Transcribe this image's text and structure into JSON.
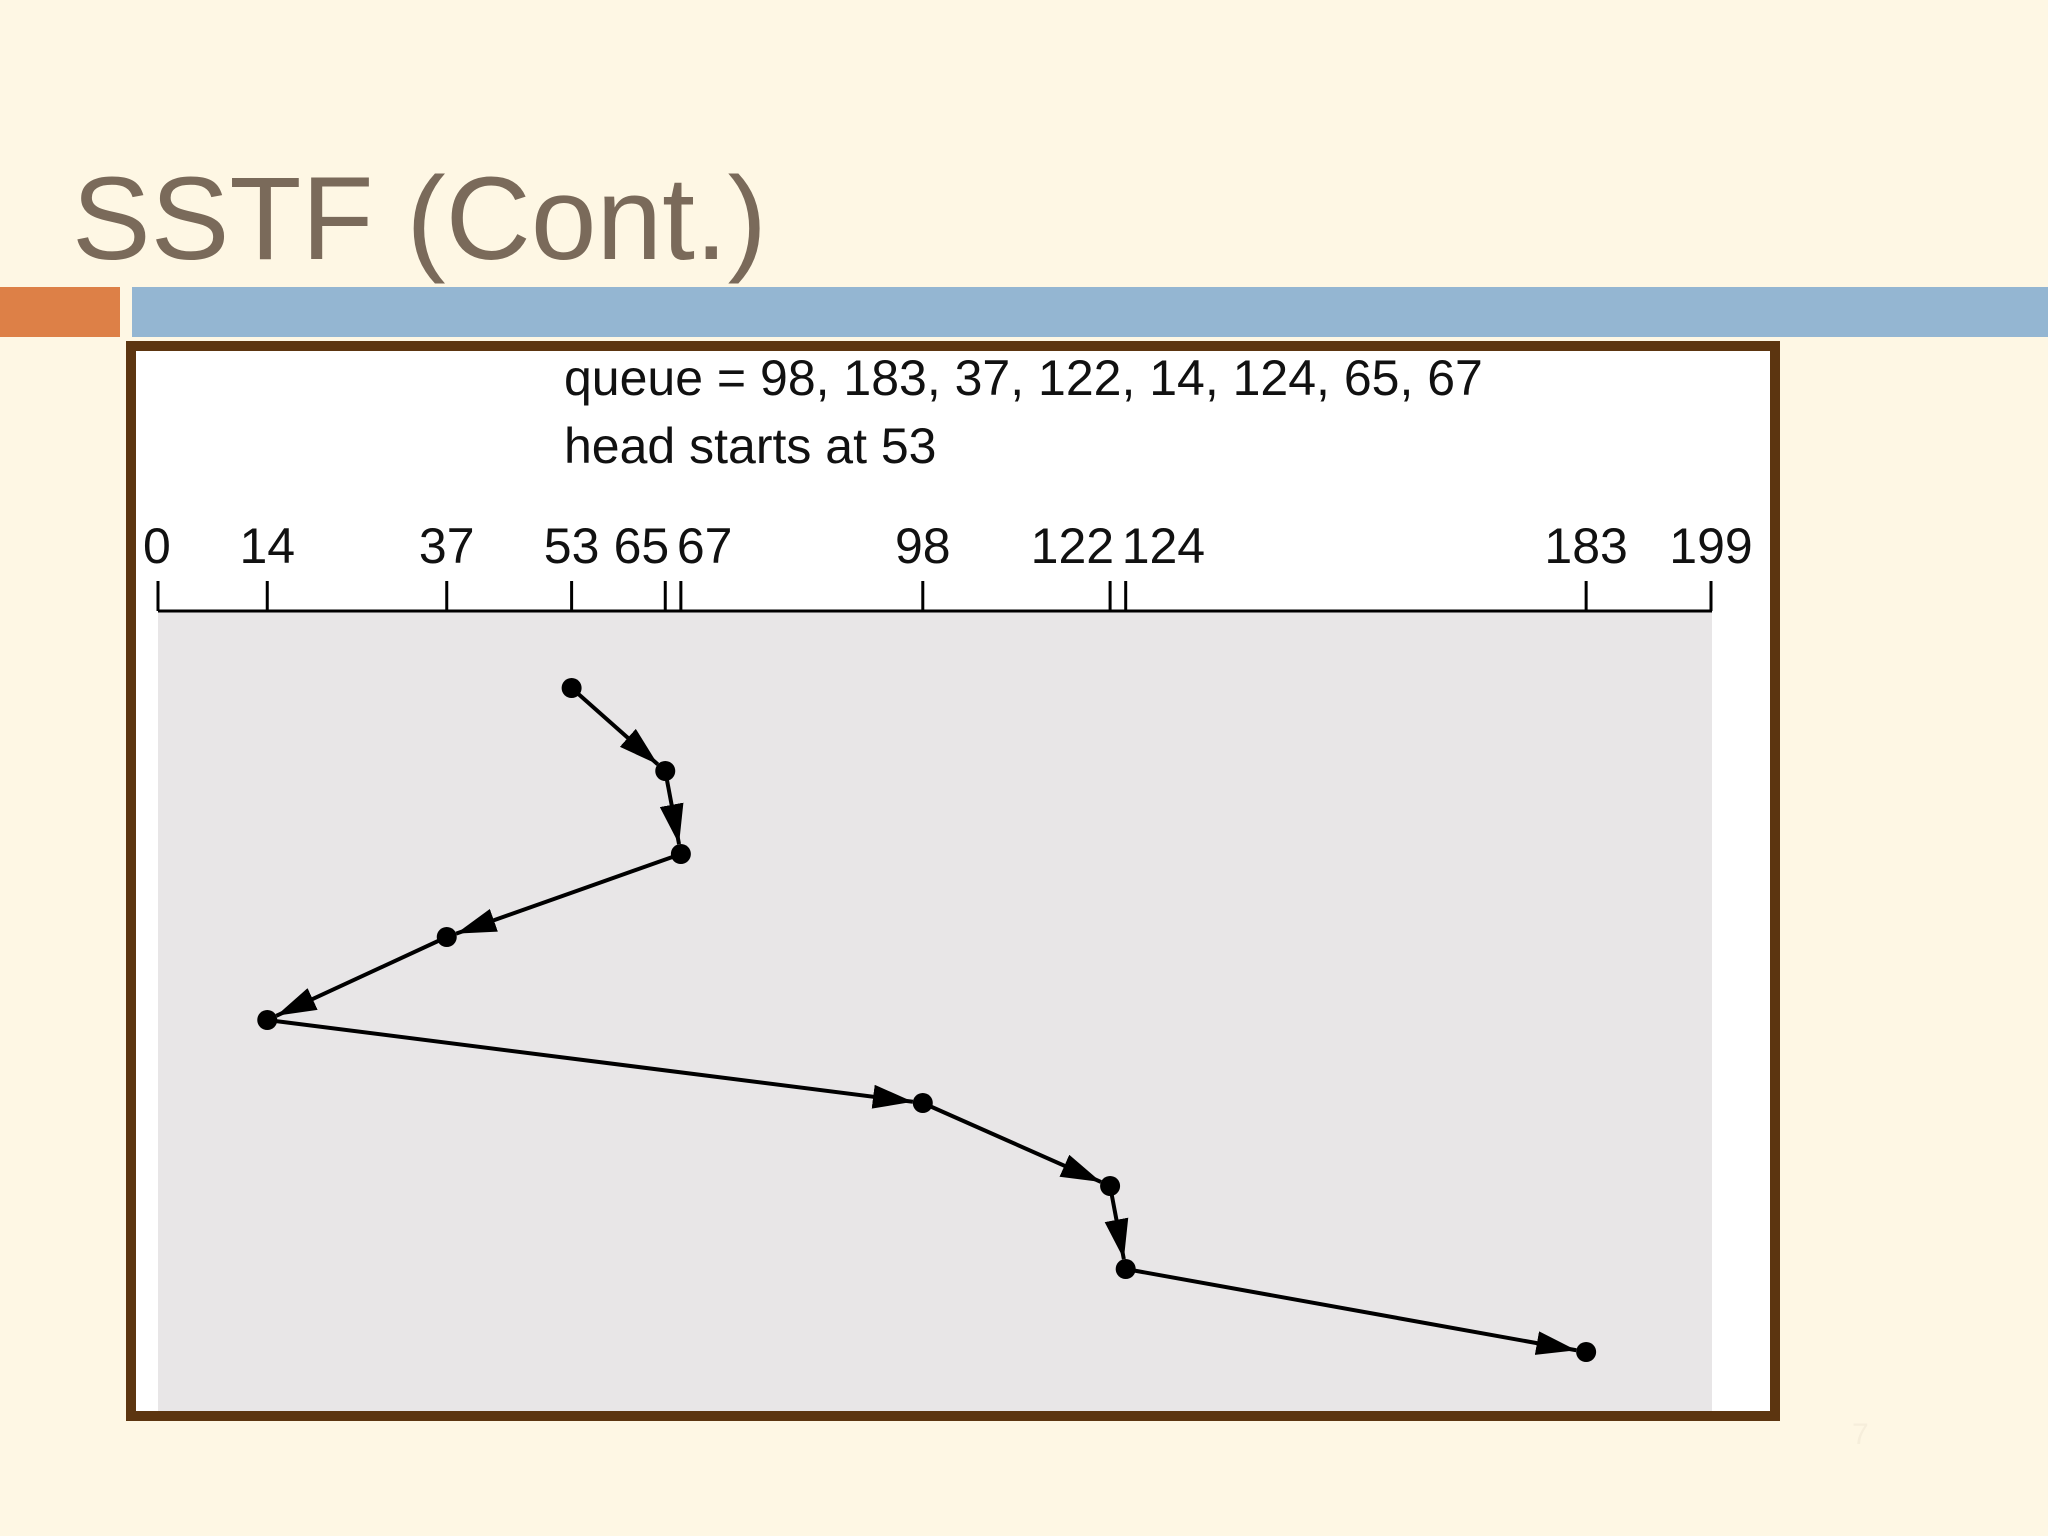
{
  "title": "SSTF (Cont.)",
  "slide_number": "7",
  "figure": {
    "queue_text": "queue = 98, 183, 37, 122, 14, 124, 65, 67",
    "head_text": "head starts at 53",
    "ticks": [
      0,
      14,
      37,
      53,
      65,
      67,
      98,
      122,
      124,
      183,
      199
    ],
    "path": [
      53,
      65,
      67,
      37,
      14,
      98,
      122,
      124,
      183
    ]
  }
}
